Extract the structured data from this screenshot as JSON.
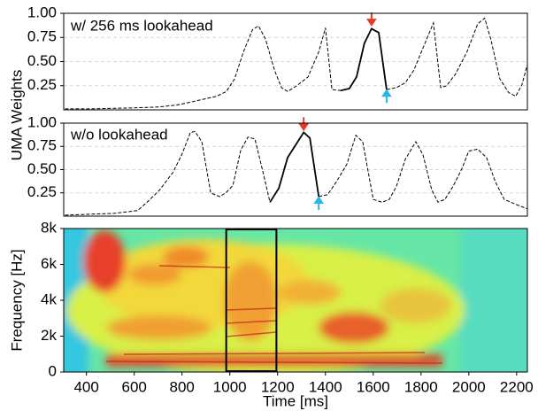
{
  "chart_data": [
    {
      "type": "line",
      "label": "w/ 256 ms lookahead",
      "ylabel": "UMA Weights",
      "xlim": [
        305,
        2245
      ],
      "ylim": [
        0,
        1
      ],
      "yticks": [
        0.25,
        {
          "value": 0.5,
          "label": "0.50"
        },
        0.75,
        {
          "value": 1,
          "label": "1.00"
        }
      ],
      "grid": true,
      "x": [
        310,
        410,
        595,
        705,
        780,
        835,
        890,
        945,
        985,
        1020,
        1057,
        1095,
        1120,
        1150,
        1187,
        1216,
        1242,
        1280,
        1327,
        1372,
        1400,
        1427,
        1464,
        1500,
        1530,
        1563,
        1593,
        1623,
        1656,
        1697,
        1734,
        1770,
        1808,
        1852,
        1882,
        1907,
        1944,
        1992,
        2037,
        2066,
        2092,
        2130,
        2166,
        2196,
        2222,
        2244
      ],
      "series": [
        {
          "color": "#000000",
          "dash": true,
          "values": [
            0.01,
            0.01,
            0.02,
            0.03,
            0.05,
            0.08,
            0.11,
            0.14,
            0.19,
            0.32,
            0.6,
            0.83,
            0.87,
            0.73,
            0.41,
            0.23,
            0.19,
            0.25,
            0.34,
            0.6,
            0.85,
            0.21,
            0.2,
            null,
            null,
            null,
            null,
            null,
            0.21,
            0.23,
            0.28,
            0.41,
            0.64,
            0.9,
            0.23,
            0.25,
            0.37,
            0.6,
            0.89,
            0.95,
            0.73,
            0.32,
            0.18,
            0.14,
            0.26,
            0.46
          ]
        },
        {
          "color": "#000000",
          "dash": false,
          "values": [
            null,
            null,
            null,
            null,
            null,
            null,
            null,
            null,
            null,
            null,
            null,
            null,
            null,
            null,
            null,
            null,
            null,
            null,
            null,
            null,
            null,
            null,
            0.2,
            0.22,
            0.34,
            0.69,
            0.84,
            0.8,
            0.21,
            null,
            null,
            null,
            null,
            null,
            null,
            null,
            null,
            null,
            null,
            null,
            null,
            null,
            null,
            null,
            null,
            null
          ]
        }
      ],
      "arrows": [
        {
          "x": 1593,
          "y": 0.88,
          "direction": "down",
          "color": "#e8382a"
        },
        {
          "x": 1656,
          "y": 0.2,
          "direction": "up",
          "color": "#29b6e8"
        }
      ]
    },
    {
      "type": "line",
      "label": "w/o lookahead",
      "xlim": [
        305,
        2245
      ],
      "ylim": [
        0,
        1
      ],
      "yticks": [
        0.25,
        {
          "value": 0.5,
          "label": "0.50"
        },
        0.75,
        {
          "value": 1,
          "label": "1.00"
        }
      ],
      "grid": true,
      "x": [
        310,
        410,
        520,
        614,
        650,
        706,
        762,
        799,
        835,
        854,
        883,
        920,
        957,
        983,
        1013,
        1046,
        1076,
        1105,
        1139,
        1168,
        1205,
        1242,
        1279,
        1309,
        1335,
        1372,
        1409,
        1446,
        1490,
        1527,
        1556,
        1600,
        1637,
        1667,
        1697,
        1734,
        1778,
        1808,
        1845,
        1871,
        1900,
        1934,
        1971,
        2000,
        2037,
        2074,
        2111,
        2148,
        2203,
        2244
      ],
      "series": [
        {
          "color": "#000000",
          "dash": true,
          "values": [
            0.01,
            0.02,
            0.03,
            0.06,
            0.14,
            0.28,
            0.47,
            0.66,
            0.9,
            0.91,
            0.8,
            0.25,
            0.21,
            0.25,
            0.33,
            0.71,
            0.85,
            0.83,
            0.47,
            0.15,
            null,
            null,
            null,
            null,
            null,
            0.21,
            0.23,
            0.37,
            0.56,
            0.87,
            0.8,
            0.18,
            0.15,
            0.18,
            0.32,
            0.61,
            0.8,
            0.66,
            0.28,
            0.15,
            0.18,
            0.32,
            0.51,
            0.7,
            0.72,
            0.63,
            0.37,
            0.18,
            0.12,
            0.08
          ]
        },
        {
          "color": "#000000",
          "dash": false,
          "values": [
            null,
            null,
            null,
            null,
            null,
            null,
            null,
            null,
            null,
            null,
            null,
            null,
            null,
            null,
            null,
            null,
            null,
            null,
            null,
            0.15,
            0.3,
            0.63,
            0.78,
            0.9,
            0.84,
            0.21,
            null,
            null,
            null,
            null,
            null,
            null,
            null,
            null,
            null,
            null,
            null,
            null,
            null,
            null,
            null,
            null,
            null,
            null,
            null,
            null,
            null,
            null,
            null,
            null
          ]
        }
      ],
      "arrows": [
        {
          "x": 1309,
          "y": 0.93,
          "direction": "down",
          "color": "#e8382a"
        },
        {
          "x": 1372,
          "y": 0.2,
          "direction": "up",
          "color": "#29b6e8"
        }
      ]
    },
    {
      "type": "spectrogram",
      "xlabel": "Time [ms]",
      "ylabel": "Frequency [Hz]",
      "xlim": [
        305,
        2245
      ],
      "ylim": [
        0,
        8000
      ],
      "xticks": [
        400,
        600,
        800,
        1000,
        1200,
        1400,
        1600,
        1800,
        2000,
        2200
      ],
      "yticks": [
        0,
        {
          "value": 2000,
          "label": "2k"
        },
        {
          "value": 4000,
          "label": "4k"
        },
        {
          "value": 6000,
          "label": "6k"
        },
        {
          "value": 8000,
          "label": "8k"
        }
      ],
      "highlight": {
        "x": [
          985,
          1195
        ],
        "color": "#000000"
      }
    }
  ]
}
